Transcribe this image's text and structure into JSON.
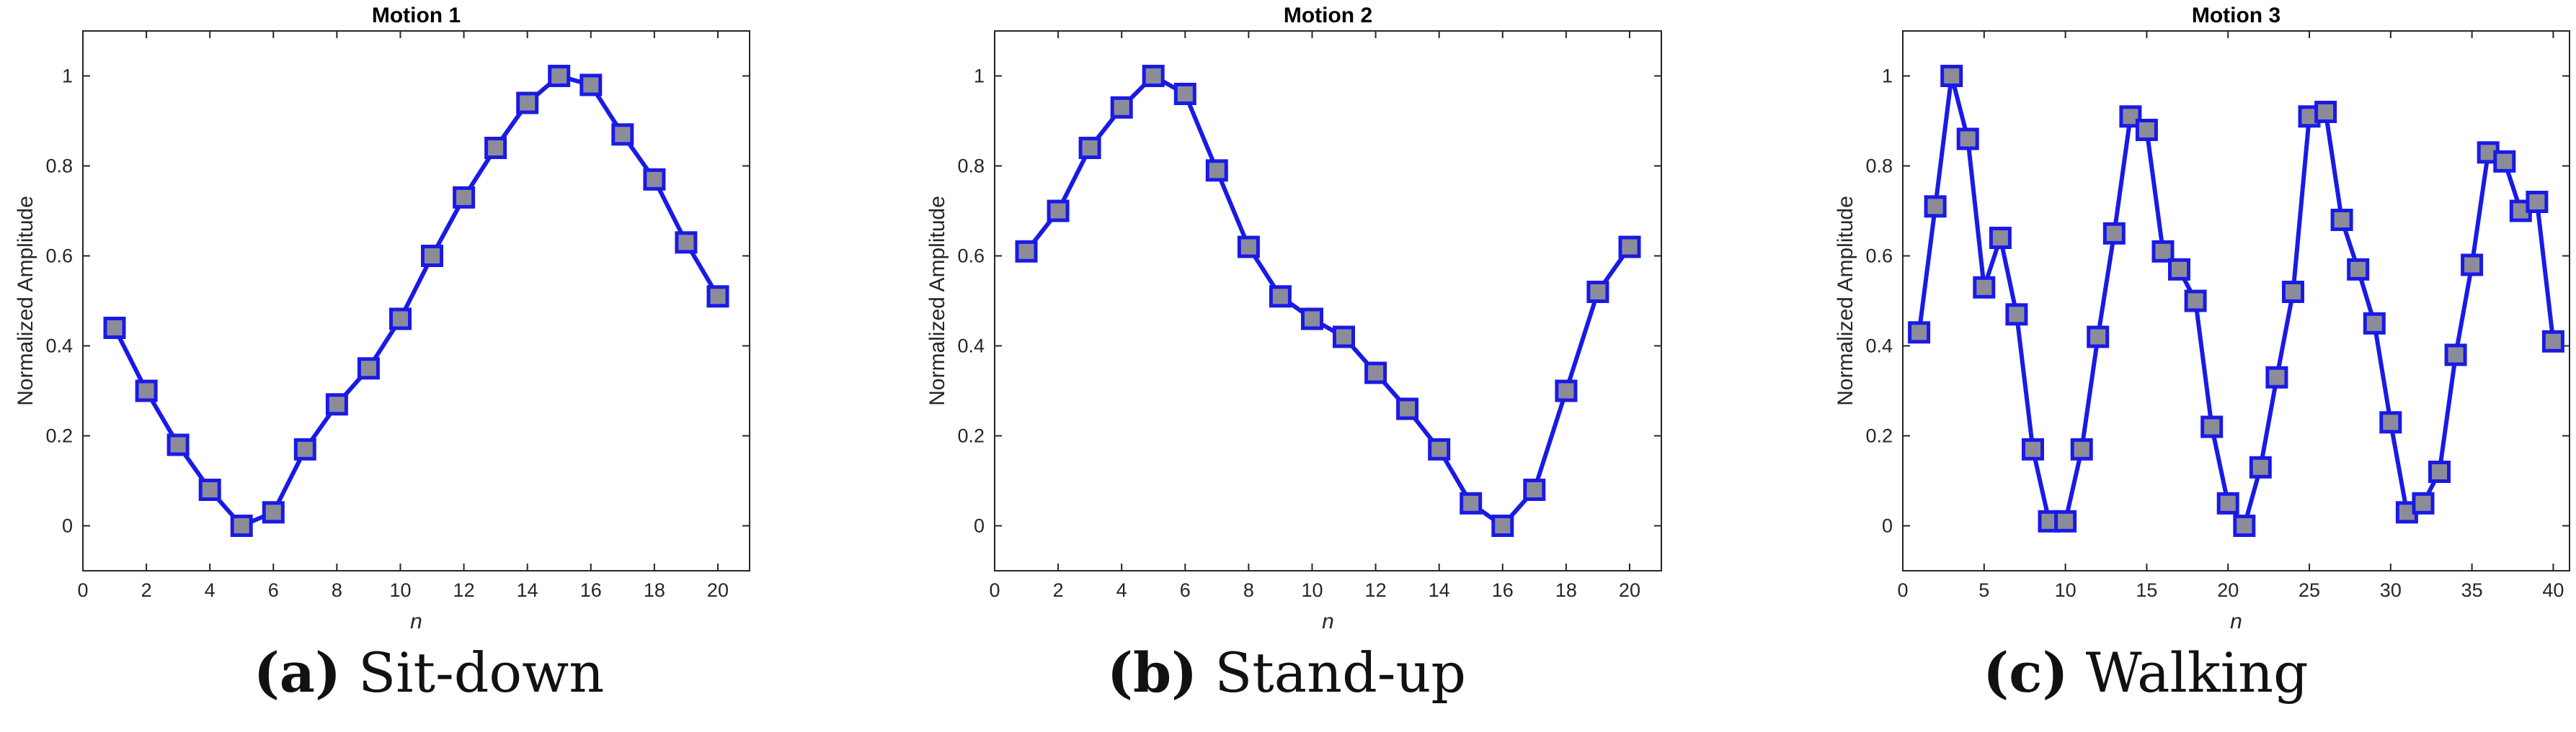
{
  "colors": {
    "line": "#1a1ae6",
    "marker_fill": "#8c8c99",
    "marker_edge": "#1a1ae6",
    "axes": "#262626"
  },
  "chart_data": [
    {
      "type": "line",
      "title": "Motion 1",
      "xlabel": "n",
      "ylabel": "Normalized Amplitude",
      "xlim": [
        0,
        21
      ],
      "ylim": [
        -0.1,
        1.1
      ],
      "xticks": [
        0,
        2,
        4,
        6,
        8,
        10,
        12,
        14,
        16,
        18,
        20
      ],
      "yticks": [
        0,
        0.2,
        0.4,
        0.6,
        0.8,
        1
      ],
      "caption_letter": "(a)",
      "caption_text": " Sit-down",
      "series": [
        {
          "x": [
            1,
            2,
            3,
            4,
            5,
            6,
            7,
            8,
            9,
            10,
            11,
            12,
            13,
            14,
            15,
            16,
            17,
            18,
            19,
            20
          ],
          "values": [
            0.44,
            0.3,
            0.18,
            0.08,
            0.0,
            0.03,
            0.17,
            0.27,
            0.35,
            0.46,
            0.6,
            0.73,
            0.84,
            0.94,
            1.0,
            0.98,
            0.87,
            0.77,
            0.63,
            0.51
          ]
        }
      ]
    },
    {
      "type": "line",
      "title": "Motion 2",
      "xlabel": "n",
      "ylabel": "Normalized Amplitude",
      "xlim": [
        0,
        21
      ],
      "ylim": [
        -0.1,
        1.1
      ],
      "xticks": [
        0,
        2,
        4,
        6,
        8,
        10,
        12,
        14,
        16,
        18,
        20
      ],
      "yticks": [
        0,
        0.2,
        0.4,
        0.6,
        0.8,
        1
      ],
      "caption_letter": "(b)",
      "caption_text": " Stand-up",
      "series": [
        {
          "x": [
            1,
            2,
            3,
            4,
            5,
            6,
            7,
            8,
            9,
            10,
            11,
            12,
            13,
            14,
            15,
            16,
            17,
            18,
            19,
            20
          ],
          "values": [
            0.61,
            0.7,
            0.84,
            0.93,
            1.0,
            0.96,
            0.79,
            0.62,
            0.51,
            0.46,
            0.42,
            0.34,
            0.26,
            0.17,
            0.05,
            0.0,
            0.08,
            0.3,
            0.52,
            0.62
          ]
        }
      ]
    },
    {
      "type": "line",
      "title": "Motion 3",
      "xlabel": "n",
      "ylabel": "Normalized Amplitude",
      "xlim": [
        0,
        41
      ],
      "ylim": [
        -0.1,
        1.1
      ],
      "xticks": [
        0,
        5,
        10,
        15,
        20,
        25,
        30,
        35,
        40
      ],
      "yticks": [
        0,
        0.2,
        0.4,
        0.6,
        0.8,
        1
      ],
      "caption_letter": "(c)",
      "caption_text": " Walking",
      "series": [
        {
          "x": [
            1,
            2,
            3,
            4,
            5,
            6,
            7,
            8,
            9,
            10,
            11,
            12,
            13,
            14,
            15,
            16,
            17,
            18,
            19,
            20,
            21,
            22,
            23,
            24,
            25,
            26,
            27,
            28,
            29,
            30,
            31,
            32,
            33,
            34,
            35,
            36,
            37,
            38,
            39,
            40
          ],
          "values": [
            0.43,
            0.71,
            1.0,
            0.86,
            0.53,
            0.64,
            0.47,
            0.17,
            0.01,
            0.01,
            0.17,
            0.42,
            0.65,
            0.91,
            0.88,
            0.61,
            0.57,
            0.5,
            0.22,
            0.05,
            0.0,
            0.13,
            0.33,
            0.52,
            0.91,
            0.92,
            0.68,
            0.57,
            0.45,
            0.23,
            0.03,
            0.05,
            0.12,
            0.38,
            0.58,
            0.83,
            0.81,
            0.7,
            0.72,
            0.41
          ]
        }
      ]
    }
  ]
}
